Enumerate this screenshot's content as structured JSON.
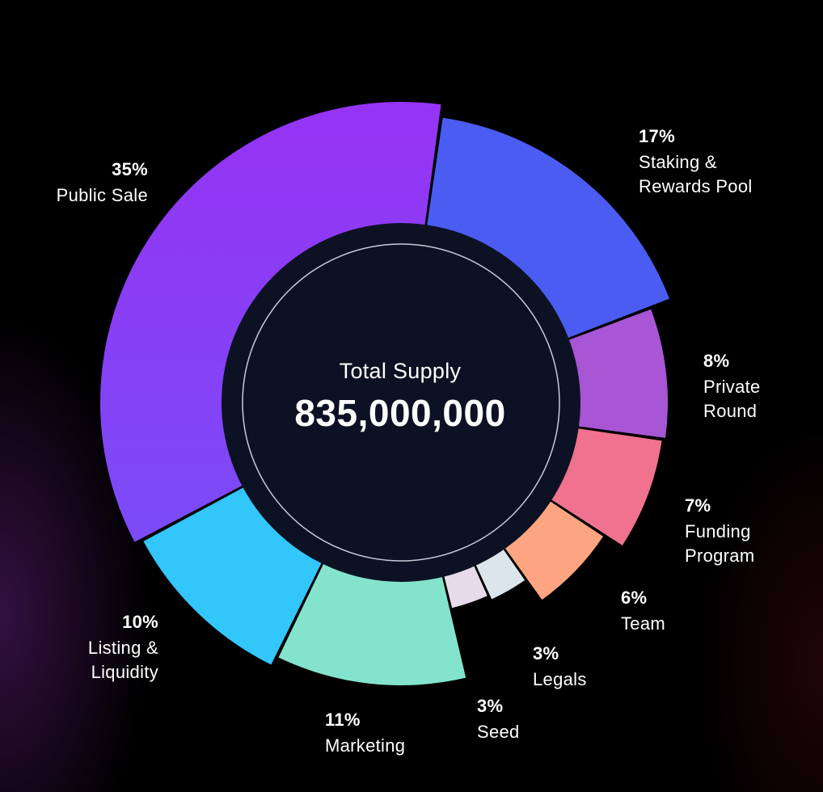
{
  "chart_data": {
    "type": "pie",
    "center": {
      "title": "Total Supply",
      "value": "835,000,000"
    },
    "slices": [
      {
        "pct_label": "17%",
        "name": "Staking &\nRewards Pool",
        "value": 17,
        "color": "#4B5CF2"
      },
      {
        "pct_label": "8%",
        "name": "Private\nRound",
        "value": 8,
        "color": "#A855D6"
      },
      {
        "pct_label": "7%",
        "name": "Funding\nProgram",
        "value": 7,
        "color": "#F0728E"
      },
      {
        "pct_label": "6%",
        "name": "Team",
        "value": 6,
        "color": "#FDA581"
      },
      {
        "pct_label": "3%",
        "name": "Legals",
        "value": 3,
        "color": "#DDE5EC"
      },
      {
        "pct_label": "3%",
        "name": "Seed",
        "value": 3,
        "color": "#E6DBEA"
      },
      {
        "pct_label": "11%",
        "name": "Marketing",
        "value": 11,
        "color": "#84E3CC"
      },
      {
        "pct_label": "10%",
        "name": "Listing &\nLiquidity",
        "value": 10,
        "color": "#33C6FB"
      },
      {
        "pct_label": "35%",
        "name": "Public Sale",
        "value": 35,
        "color": "#8E34F5"
      }
    ]
  }
}
